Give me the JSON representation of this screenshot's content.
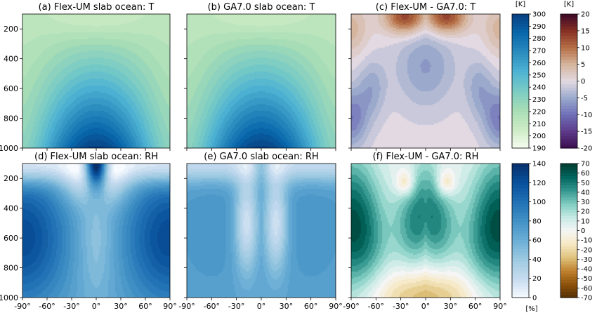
{
  "chart_data": [
    {
      "type": "heatmap",
      "title": "(a) Flex-UM slab ocean: T",
      "x_ticks": [],
      "y_ticks": [
        "200",
        "400",
        "600",
        "800",
        "1000"
      ],
      "field": "T",
      "colormap": "GnBu",
      "colorbar": 0
    },
    {
      "type": "heatmap",
      "title": "(b) GA7.0 slab ocean: T",
      "x_ticks": [],
      "y_ticks": [],
      "field": "T",
      "colormap": "GnBu",
      "colorbar": 0
    },
    {
      "type": "heatmap",
      "title": "(c) Flex-UM - GA7.0: T",
      "x_ticks": [],
      "y_ticks": [],
      "field": "dT",
      "colormap": "twilight_shifted",
      "colorbar": 1
    },
    {
      "type": "heatmap",
      "title": "(d) Flex-UM slab ocean: RH",
      "x_ticks": [
        "-90°",
        "-60°",
        "-30°",
        "0°",
        "30°",
        "60°",
        "90°"
      ],
      "y_ticks": [
        "200",
        "400",
        "600",
        "800",
        "1000"
      ],
      "field": "RH",
      "colormap": "Blues",
      "colorbar": 2
    },
    {
      "type": "heatmap",
      "title": "(e) GA7.0 slab ocean: RH",
      "x_ticks": [
        "-90°",
        "-60°",
        "-30°",
        "0°",
        "30°",
        "60°",
        "90°"
      ],
      "y_ticks": [],
      "field": "RH2",
      "colormap": "Blues",
      "colorbar": 2
    },
    {
      "type": "heatmap",
      "title": "(f) Flex-UM - GA7.0: RH",
      "x_ticks": [
        "-90°",
        "-60°",
        "-30°",
        "0°",
        "30°",
        "60°",
        "90°"
      ],
      "y_ticks": [],
      "field": "dRH",
      "colormap": "BrBG",
      "colorbar": 3
    }
  ],
  "colorbars": [
    {
      "unit": "[K]",
      "min": 190,
      "max": 300,
      "colormap": "GnBu",
      "ticks": [
        "190",
        "200",
        "210",
        "220",
        "230",
        "240",
        "250",
        "260",
        "270",
        "280",
        "290",
        "300"
      ]
    },
    {
      "unit": "[K]",
      "min": -20,
      "max": 20,
      "colormap": "twilight_shifted",
      "ticks": [
        "-20",
        "-15",
        "-10",
        "-5",
        "0",
        "5",
        "10",
        "15",
        "20"
      ]
    },
    {
      "unit": "[%]",
      "min": 0,
      "max": 140,
      "colormap": "Blues",
      "ticks": [
        "0",
        "20",
        "40",
        "60",
        "80",
        "100",
        "120",
        "140"
      ]
    },
    {
      "unit": "",
      "min": -70,
      "max": 70,
      "colormap": "BrBG",
      "ticks": [
        "-70",
        "-60",
        "-50",
        "-40",
        "-30",
        "-20",
        "-10",
        "0",
        "10",
        "20",
        "30",
        "40",
        "50",
        "60",
        "70"
      ]
    }
  ],
  "axes": {
    "x_range": [
      -90,
      90
    ],
    "y_range": [
      1000,
      100
    ]
  },
  "colors": {
    "GnBu": [
      "#f7fcf0",
      "#ccebc5",
      "#a8ddb5",
      "#7bccc4",
      "#4eb3d3",
      "#2b8cbe",
      "#0868ac",
      "#084081"
    ],
    "twilight_shifted": [
      "#3a0d4e",
      "#5e3a8a",
      "#6f6fb8",
      "#9aa9cc",
      "#e2d9e2",
      "#d6b59e",
      "#b67047",
      "#873024",
      "#3d0a27"
    ],
    "Blues": [
      "#f7fbff",
      "#c6dbef",
      "#9ecae1",
      "#6baed6",
      "#4292c6",
      "#2171b5",
      "#08519c",
      "#08306b"
    ],
    "BrBG": [
      "#543005",
      "#8c510a",
      "#bf812d",
      "#dfc27d",
      "#f6e8c3",
      "#f5f5f5",
      "#c7eae5",
      "#80cdc1",
      "#35978f",
      "#01665e",
      "#003c30"
    ]
  }
}
